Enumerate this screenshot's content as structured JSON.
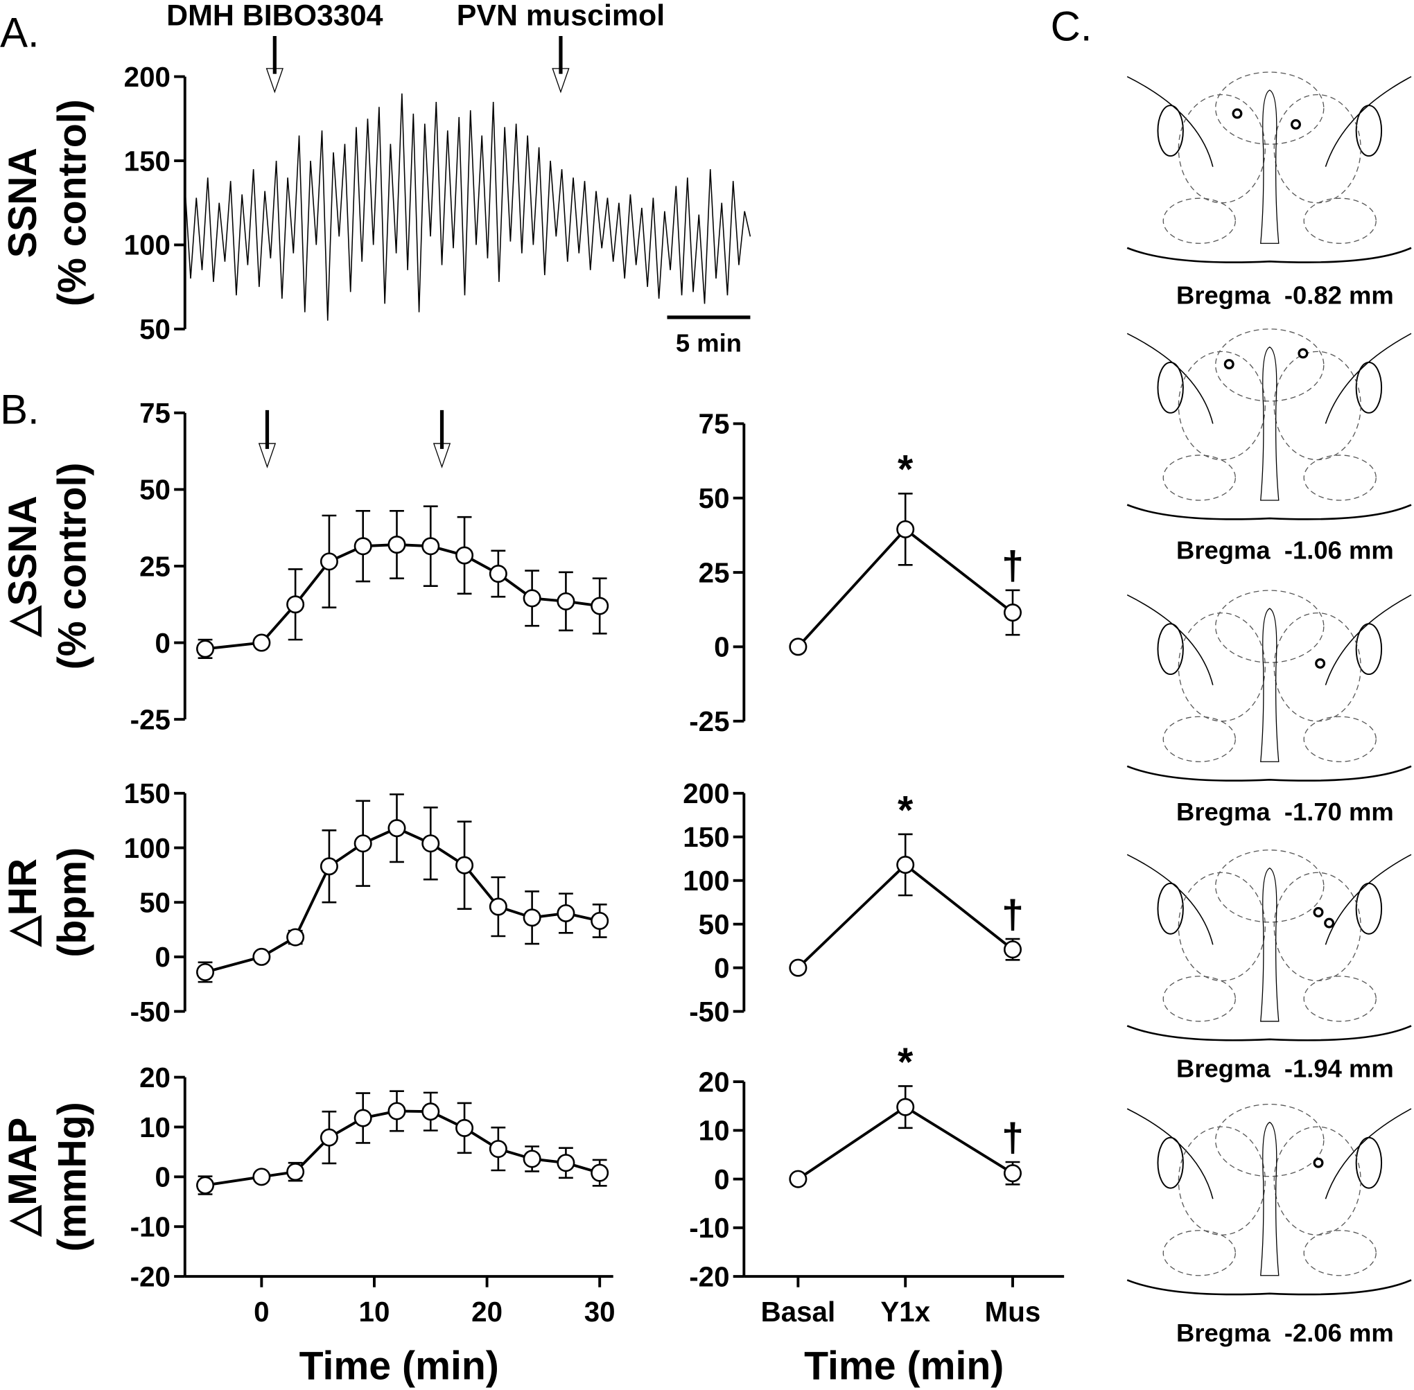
{
  "panels": [
    "A.",
    "B.",
    "C."
  ],
  "chart_data": [
    {
      "type": "line",
      "ylabel": [
        "SSNA",
        "(% control)"
      ],
      "xlim": [
        0,
        34
      ],
      "ylim": [
        50,
        200
      ],
      "yticks": [
        50,
        100,
        150,
        200
      ],
      "values": [
        135,
        80,
        128,
        85,
        140,
        78,
        125,
        90,
        138,
        70,
        130,
        88,
        145,
        75,
        132,
        92,
        150,
        68,
        140,
        95,
        165,
        60,
        150,
        100,
        168,
        55,
        155,
        105,
        160,
        72,
        170,
        90,
        175,
        100,
        182,
        65,
        160,
        95,
        190,
        85,
        178,
        60,
        172,
        105,
        185,
        88,
        168,
        98,
        176,
        70,
        180,
        100,
        165,
        92,
        185,
        78,
        170,
        102,
        172,
        95,
        165,
        100,
        158,
        82,
        150,
        105,
        145,
        90,
        140,
        95,
        138,
        85,
        132,
        98,
        128,
        90,
        125,
        80,
        130,
        88,
        122,
        75,
        128,
        68,
        120,
        85,
        135,
        70,
        140,
        72,
        118,
        65,
        145,
        80,
        125,
        70,
        138,
        88,
        120,
        105
      ],
      "annotations": [
        {
          "text": "DMH BIBO3304",
          "x": 5.4
        },
        {
          "text": "PVN muscimol",
          "x": 22.6
        }
      ],
      "scale_bar": {
        "length": 5,
        "label": "5 min"
      }
    },
    {
      "type": "line",
      "ylabel": [
        "△SSNA",
        "(% control)"
      ],
      "xlim": [
        -6.8,
        31.2
      ],
      "ylim": [
        -25,
        75
      ],
      "yticks": [
        -25,
        0,
        25,
        50,
        75
      ],
      "x": [
        -5,
        0,
        3,
        6,
        9,
        12,
        15,
        18,
        21,
        24,
        27,
        30
      ],
      "values": [
        -2,
        0,
        12.5,
        26.5,
        31.5,
        32,
        31.5,
        28.5,
        22.5,
        14.5,
        13.5,
        12
      ],
      "errors": [
        3,
        0,
        11.5,
        15,
        11.5,
        11,
        13,
        12.5,
        7.5,
        9,
        9.5,
        9
      ],
      "arrows": [
        0.5,
        16
      ]
    },
    {
      "type": "line",
      "categories": [
        "Basal",
        "Y1x",
        "Mus"
      ],
      "ylim": [
        -25,
        75
      ],
      "yticks": [
        -25,
        0,
        25,
        50,
        75
      ],
      "values": [
        0,
        39.5,
        11.5
      ],
      "errors": [
        0,
        12,
        7.5
      ],
      "annotations": [
        {
          "text": "*",
          "index": 1
        },
        {
          "text": "†",
          "index": 2
        }
      ]
    },
    {
      "type": "line",
      "ylabel": [
        "△HR",
        "(bpm)"
      ],
      "xlim": [
        -6.8,
        31.2
      ],
      "ylim": [
        -50,
        150
      ],
      "yticks": [
        -50,
        0,
        50,
        100,
        150
      ],
      "x": [
        -5,
        0,
        3,
        6,
        9,
        12,
        15,
        18,
        21,
        24,
        27,
        30
      ],
      "values": [
        -14,
        0,
        18,
        83,
        104,
        118,
        104,
        84,
        46,
        36,
        40,
        33
      ],
      "errors": [
        9,
        0,
        6,
        33,
        39,
        31,
        33,
        40,
        27,
        24,
        18,
        15
      ]
    },
    {
      "type": "line",
      "categories": [
        "Basal",
        "Y1x",
        "Mus"
      ],
      "ylim": [
        -50,
        200
      ],
      "yticks": [
        -50,
        0,
        50,
        100,
        150,
        200
      ],
      "values": [
        0,
        118,
        21
      ],
      "errors": [
        0,
        35,
        12
      ],
      "annotations": [
        {
          "text": "*",
          "index": 1
        },
        {
          "text": "†",
          "index": 2
        }
      ]
    },
    {
      "type": "line",
      "ylabel": [
        "△MAP",
        "(mmHg)"
      ],
      "xlabel": "Time (min)",
      "xlim": [
        -6.8,
        31.2
      ],
      "ylim": [
        -20,
        20
      ],
      "yticks": [
        -20,
        -10,
        0,
        10,
        20
      ],
      "xticks": [
        0,
        10,
        20,
        30
      ],
      "x": [
        -5,
        0,
        3,
        6,
        9,
        12,
        15,
        18,
        21,
        24,
        27,
        30
      ],
      "values": [
        -1.7,
        0,
        1,
        7.9,
        11.8,
        13.2,
        13.1,
        9.8,
        5.6,
        3.6,
        2.8,
        0.8
      ],
      "errors": [
        1.8,
        0,
        1.8,
        5.2,
        5,
        4,
        3.8,
        5,
        4.3,
        2.5,
        3,
        2.6
      ]
    },
    {
      "type": "line",
      "xlabel": "Time (min)",
      "categories": [
        "Basal",
        "Y1x",
        "Mus"
      ],
      "ylim": [
        -20,
        20
      ],
      "yticks": [
        -20,
        -10,
        0,
        10,
        20
      ],
      "values": [
        0,
        14.8,
        1.2
      ],
      "errors": [
        0,
        4.3,
        2.3
      ],
      "annotations": [
        {
          "text": "*",
          "index": 1
        },
        {
          "text": "†",
          "index": 2
        }
      ]
    }
  ],
  "sections": [
    {
      "label": "Bregma  -0.82 mm"
    },
    {
      "label": "Bregma  -1.06 mm"
    },
    {
      "label": "Bregma  -1.70 mm"
    },
    {
      "label": "Bregma  -1.94 mm"
    },
    {
      "label": "Bregma  -2.06 mm"
    }
  ]
}
